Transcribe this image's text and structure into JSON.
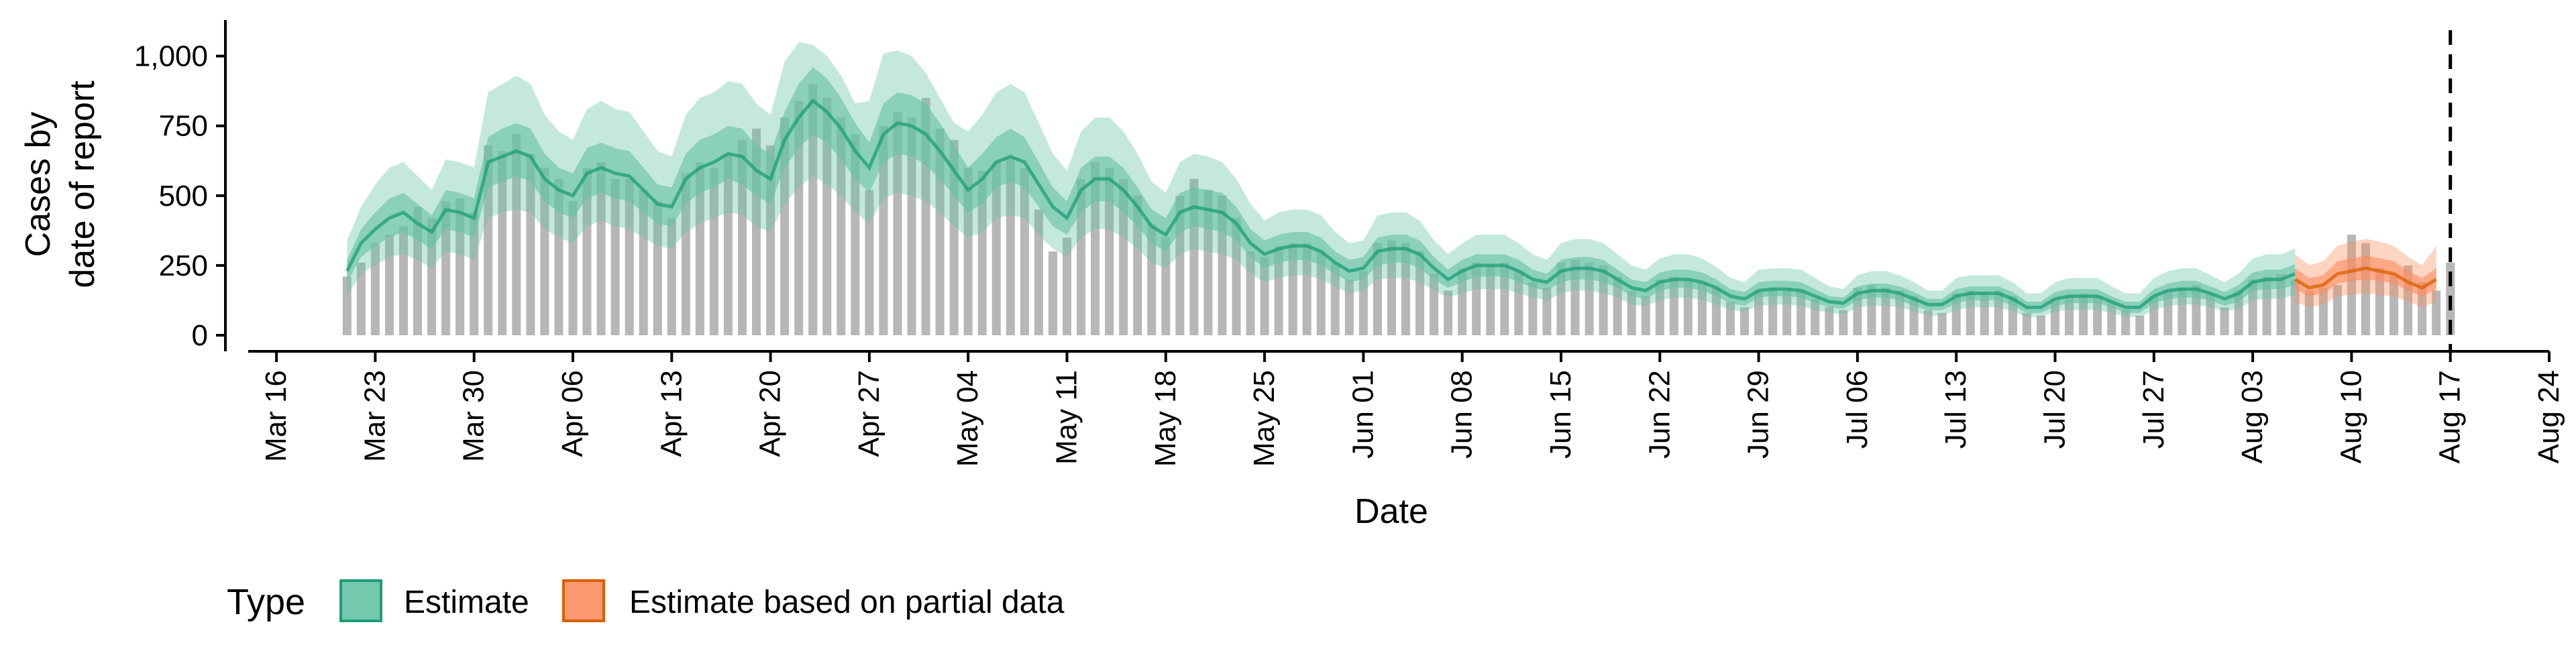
{
  "chart_data": {
    "type": "bar",
    "title": "",
    "xlabel": "Date",
    "ylabel_lines": [
      "Cases by",
      "date of report"
    ],
    "ylim": [
      0,
      1100
    ],
    "y_ticks": [
      {
        "value": 0,
        "label": "0"
      },
      {
        "value": 250,
        "label": "250"
      },
      {
        "value": 500,
        "label": "500"
      },
      {
        "value": 750,
        "label": "750"
      },
      {
        "value": 1000,
        "label": "1,000"
      }
    ],
    "x_start": "2020-03-14",
    "x_end": "2020-08-24",
    "x_ticks": [
      {
        "date": "2020-03-16",
        "label": "Mar 16"
      },
      {
        "date": "2020-03-23",
        "label": "Mar 23"
      },
      {
        "date": "2020-03-30",
        "label": "Mar 30"
      },
      {
        "date": "2020-04-06",
        "label": "Apr 06"
      },
      {
        "date": "2020-04-13",
        "label": "Apr 13"
      },
      {
        "date": "2020-04-20",
        "label": "Apr 20"
      },
      {
        "date": "2020-04-27",
        "label": "Apr 27"
      },
      {
        "date": "2020-05-04",
        "label": "May 04"
      },
      {
        "date": "2020-05-11",
        "label": "May 11"
      },
      {
        "date": "2020-05-18",
        "label": "May 18"
      },
      {
        "date": "2020-05-25",
        "label": "May 25"
      },
      {
        "date": "2020-06-01",
        "label": "Jun 01"
      },
      {
        "date": "2020-06-08",
        "label": "Jun 08"
      },
      {
        "date": "2020-06-15",
        "label": "Jun 15"
      },
      {
        "date": "2020-06-22",
        "label": "Jun 22"
      },
      {
        "date": "2020-06-29",
        "label": "Jun 29"
      },
      {
        "date": "2020-07-06",
        "label": "Jul 06"
      },
      {
        "date": "2020-07-13",
        "label": "Jul 13"
      },
      {
        "date": "2020-07-20",
        "label": "Jul 20"
      },
      {
        "date": "2020-07-27",
        "label": "Jul 27"
      },
      {
        "date": "2020-08-03",
        "label": "Aug 03"
      },
      {
        "date": "2020-08-10",
        "label": "Aug 10"
      },
      {
        "date": "2020-08-17",
        "label": "Aug 17"
      },
      {
        "date": "2020-08-24",
        "label": "Aug 24"
      }
    ],
    "vline_date": "2020-08-17",
    "bar_color": "#b3b3b3",
    "bars_start": "2020-03-21",
    "observed_cases": [
      210,
      260,
      330,
      360,
      390,
      460,
      420,
      480,
      490,
      440,
      680,
      660,
      720,
      650,
      600,
      560,
      480,
      600,
      620,
      560,
      560,
      520,
      480,
      420,
      580,
      620,
      600,
      650,
      700,
      740,
      680,
      780,
      840,
      900,
      850,
      780,
      720,
      520,
      750,
      800,
      780,
      850,
      740,
      700,
      600,
      590,
      620,
      640,
      600,
      450,
      300,
      350,
      560,
      620,
      600,
      560,
      500,
      400,
      350,
      500,
      560,
      520,
      500,
      420,
      300,
      280,
      320,
      330,
      330,
      300,
      260,
      200,
      230,
      330,
      340,
      330,
      300,
      220,
      160,
      240,
      260,
      250,
      260,
      230,
      190,
      170,
      260,
      270,
      260,
      250,
      210,
      160,
      140,
      200,
      210,
      200,
      190,
      170,
      120,
      100,
      160,
      170,
      160,
      160,
      130,
      100,
      90,
      170,
      180,
      170,
      160,
      140,
      90,
      80,
      150,
      160,
      150,
      160,
      140,
      80,
      70,
      130,
      140,
      150,
      140,
      120,
      90,
      70,
      140,
      160,
      170,
      180,
      150,
      100,
      160,
      200,
      210,
      220,
      200,
      160,
      170,
      180,
      360,
      330,
      240,
      220,
      250,
      190,
      160,
      260
    ],
    "estimate_start": "2020-03-21",
    "estimate_end": "2020-08-05",
    "partial_start": "2020-08-06",
    "partial_end": "2020-08-16",
    "series": [
      {
        "name": "Estimate",
        "color": "#1b9e77",
        "fill_color": "#66c2a5",
        "median": [
          230,
          330,
          380,
          420,
          440,
          400,
          370,
          450,
          440,
          420,
          620,
          640,
          660,
          640,
          560,
          520,
          500,
          580,
          600,
          580,
          570,
          520,
          470,
          460,
          560,
          600,
          620,
          650,
          640,
          590,
          560,
          700,
          780,
          840,
          800,
          740,
          660,
          600,
          720,
          760,
          750,
          720,
          660,
          590,
          520,
          560,
          620,
          640,
          620,
          540,
          460,
          420,
          520,
          560,
          560,
          520,
          460,
          390,
          360,
          440,
          460,
          450,
          440,
          400,
          330,
          290,
          310,
          320,
          320,
          300,
          260,
          230,
          240,
          300,
          310,
          310,
          290,
          240,
          200,
          230,
          250,
          250,
          250,
          230,
          200,
          190,
          230,
          240,
          240,
          230,
          200,
          170,
          160,
          190,
          200,
          200,
          190,
          170,
          140,
          130,
          160,
          165,
          165,
          160,
          140,
          120,
          115,
          150,
          160,
          160,
          150,
          130,
          110,
          110,
          140,
          150,
          150,
          150,
          130,
          100,
          100,
          130,
          140,
          140,
          140,
          120,
          100,
          100,
          140,
          160,
          165,
          165,
          150,
          130,
          150,
          190,
          200,
          200,
          220
        ],
        "lower_50": [
          190,
          280,
          320,
          350,
          370,
          340,
          310,
          380,
          370,
          350,
          530,
          550,
          570,
          550,
          480,
          440,
          420,
          490,
          510,
          490,
          480,
          440,
          400,
          390,
          470,
          510,
          530,
          560,
          540,
          500,
          470,
          600,
          670,
          720,
          690,
          630,
          560,
          510,
          620,
          650,
          640,
          610,
          560,
          500,
          440,
          470,
          530,
          550,
          530,
          460,
          390,
          360,
          440,
          480,
          480,
          440,
          390,
          330,
          300,
          370,
          390,
          380,
          370,
          340,
          280,
          240,
          260,
          270,
          270,
          250,
          220,
          190,
          200,
          250,
          260,
          260,
          240,
          200,
          170,
          190,
          210,
          210,
          210,
          190,
          170,
          160,
          190,
          200,
          200,
          190,
          170,
          140,
          130,
          160,
          170,
          170,
          160,
          140,
          115,
          105,
          135,
          140,
          140,
          135,
          115,
          100,
          95,
          125,
          135,
          135,
          125,
          105,
          90,
          90,
          115,
          125,
          125,
          125,
          105,
          80,
          80,
          105,
          115,
          115,
          115,
          100,
          80,
          80,
          115,
          130,
          135,
          135,
          125,
          105,
          120,
          160,
          165,
          165,
          180
        ],
        "upper_50": [
          270,
          380,
          440,
          490,
          510,
          470,
          430,
          520,
          510,
          490,
          710,
          740,
          760,
          740,
          650,
          600,
          580,
          670,
          690,
          670,
          660,
          600,
          540,
          530,
          650,
          700,
          720,
          750,
          740,
          680,
          650,
          800,
          900,
          960,
          920,
          850,
          760,
          690,
          830,
          870,
          860,
          830,
          760,
          680,
          600,
          650,
          710,
          740,
          710,
          620,
          530,
          480,
          600,
          640,
          640,
          600,
          530,
          450,
          420,
          510,
          530,
          520,
          510,
          460,
          380,
          340,
          360,
          370,
          370,
          350,
          300,
          270,
          280,
          350,
          360,
          360,
          340,
          280,
          235,
          270,
          290,
          290,
          290,
          270,
          235,
          220,
          270,
          280,
          280,
          270,
          235,
          200,
          190,
          225,
          235,
          235,
          225,
          200,
          165,
          155,
          190,
          195,
          195,
          190,
          165,
          140,
          135,
          175,
          185,
          185,
          175,
          155,
          130,
          130,
          165,
          175,
          175,
          175,
          155,
          120,
          120,
          155,
          165,
          165,
          165,
          140,
          120,
          120,
          165,
          185,
          195,
          195,
          175,
          155,
          180,
          225,
          235,
          235,
          255
        ],
        "lower_90": [
          140,
          220,
          250,
          280,
          290,
          270,
          240,
          300,
          290,
          270,
          420,
          440,
          450,
          440,
          380,
          350,
          330,
          390,
          410,
          390,
          380,
          350,
          320,
          310,
          370,
          400,
          420,
          440,
          430,
          390,
          370,
          470,
          530,
          570,
          540,
          500,
          440,
          400,
          490,
          510,
          500,
          480,
          440,
          390,
          350,
          370,
          420,
          430,
          420,
          360,
          310,
          280,
          350,
          380,
          380,
          350,
          310,
          260,
          240,
          290,
          310,
          300,
          290,
          270,
          220,
          190,
          205,
          215,
          215,
          200,
          175,
          150,
          160,
          200,
          205,
          205,
          190,
          160,
          135,
          150,
          165,
          165,
          165,
          150,
          135,
          125,
          150,
          160,
          160,
          150,
          135,
          110,
          105,
          125,
          135,
          135,
          125,
          110,
          90,
          85,
          105,
          110,
          110,
          105,
          90,
          80,
          75,
          100,
          105,
          105,
          100,
          85,
          70,
          70,
          90,
          100,
          100,
          100,
          85,
          65,
          65,
          85,
          90,
          90,
          90,
          80,
          65,
          65,
          90,
          105,
          110,
          110,
          100,
          85,
          95,
          125,
          130,
          130,
          145
        ],
        "upper_90": [
          340,
          460,
          540,
          600,
          620,
          570,
          520,
          630,
          620,
          600,
          870,
          900,
          930,
          900,
          790,
          730,
          700,
          810,
          840,
          810,
          800,
          730,
          660,
          640,
          790,
          850,
          870,
          910,
          900,
          830,
          790,
          980,
          1050,
          1040,
          1000,
          930,
          830,
          840,
          1010,
          1020,
          1000,
          940,
          850,
          760,
          730,
          790,
          870,
          900,
          870,
          760,
          650,
          590,
          730,
          780,
          780,
          730,
          650,
          550,
          510,
          620,
          650,
          640,
          620,
          560,
          470,
          410,
          440,
          450,
          450,
          430,
          370,
          330,
          340,
          430,
          440,
          440,
          410,
          340,
          290,
          330,
          360,
          360,
          360,
          330,
          290,
          270,
          330,
          345,
          345,
          330,
          290,
          250,
          235,
          275,
          290,
          290,
          275,
          245,
          205,
          190,
          235,
          240,
          240,
          235,
          205,
          175,
          165,
          215,
          230,
          230,
          215,
          190,
          160,
          160,
          205,
          215,
          215,
          215,
          190,
          150,
          150,
          190,
          205,
          205,
          205,
          175,
          150,
          150,
          205,
          230,
          240,
          240,
          215,
          190,
          220,
          275,
          290,
          290,
          310
        ]
      },
      {
        "name": "Estimate based on partial data",
        "color": "#d95f02",
        "fill_color": "#fc8d62",
        "median": [
          200,
          170,
          180,
          220,
          230,
          240,
          230,
          220,
          190,
          170,
          200
        ],
        "lower_50": [
          165,
          140,
          150,
          185,
          195,
          200,
          195,
          185,
          160,
          140,
          165
        ],
        "upper_50": [
          240,
          205,
          215,
          265,
          275,
          285,
          275,
          265,
          230,
          205,
          240
        ],
        "lower_90": [
          120,
          100,
          110,
          140,
          145,
          150,
          145,
          140,
          120,
          100,
          120
        ],
        "upper_90": [
          290,
          250,
          265,
          320,
          335,
          345,
          335,
          320,
          280,
          250,
          320
        ]
      }
    ],
    "legend": {
      "title": "Type",
      "position": "bottom-left",
      "items": [
        "Estimate",
        "Estimate based on partial data"
      ]
    },
    "grid": false
  }
}
